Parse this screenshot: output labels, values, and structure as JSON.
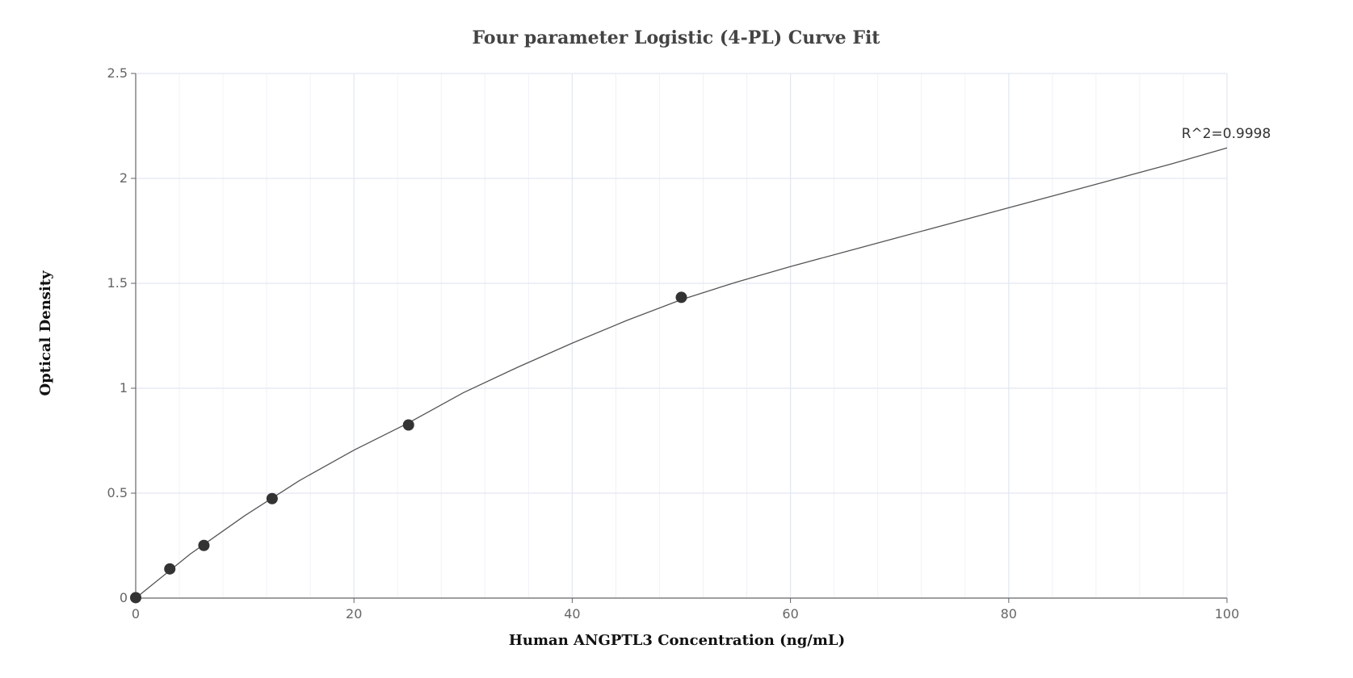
{
  "chart_data": {
    "type": "scatter",
    "title": "Four parameter Logistic (4-PL) Curve Fit",
    "xlabel": "Human ANGPTL3 Concentration (ng/mL)",
    "ylabel": "Optical Density",
    "xlim": [
      0,
      100
    ],
    "ylim": [
      0,
      2.5
    ],
    "x_ticks": [
      0,
      20,
      40,
      60,
      80,
      100
    ],
    "y_ticks": [
      0,
      0.5,
      1,
      1.5,
      2,
      2.5
    ],
    "x_tick_labels": [
      "0",
      "20",
      "40",
      "60",
      "80",
      "100"
    ],
    "y_tick_labels": [
      "0",
      "0.5",
      "1",
      "1.5",
      "2",
      "2.5"
    ],
    "grid": true,
    "colors": {
      "points": "#333333",
      "curve": "#555555",
      "grid": "#e4e8f2",
      "axis": "#666666"
    },
    "series": [
      {
        "x": [
          0,
          3.125,
          6.25,
          12.5,
          25,
          50
        ],
        "y": [
          0.002,
          0.139,
          0.251,
          0.474,
          0.825,
          1.433
        ]
      }
    ],
    "fit": {
      "x": [
        0,
        5,
        10,
        15,
        20,
        25,
        30,
        35,
        40,
        45,
        50,
        55,
        60,
        65,
        70,
        75,
        80,
        85,
        90,
        95,
        100
      ],
      "y": [
        0.0,
        0.21,
        0.393,
        0.56,
        0.705,
        0.835,
        0.978,
        1.1,
        1.215,
        1.323,
        1.422,
        1.505,
        1.58,
        1.65,
        1.72,
        1.79,
        1.86,
        1.93,
        2.0,
        2.07,
        2.145
      ]
    },
    "annotation": "R^2=0.9998"
  }
}
